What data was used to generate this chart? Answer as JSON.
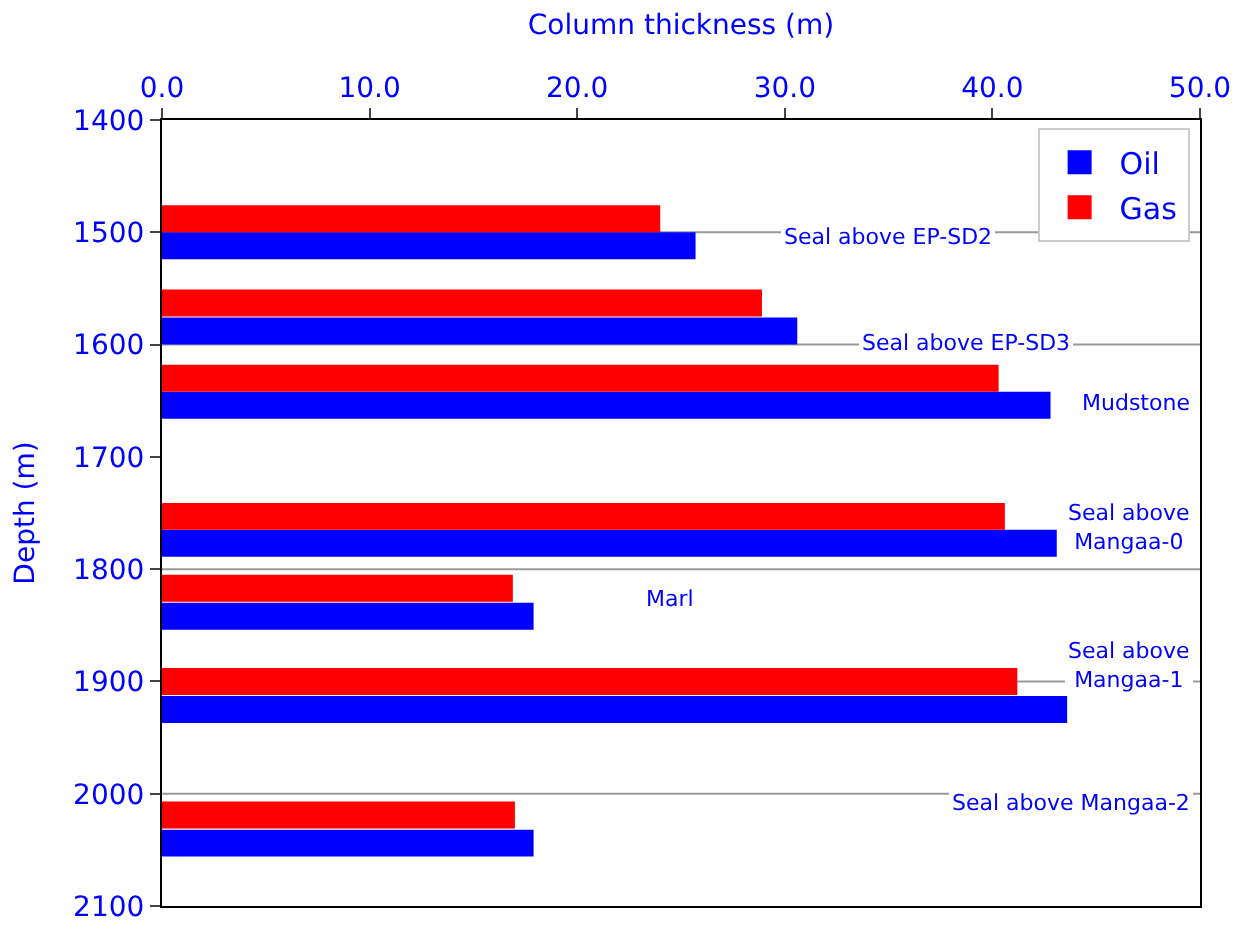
{
  "chart_data": {
    "type": "bar",
    "orientation": "horizontal",
    "xlabel": "Column thickness (m)",
    "ylabel": "Depth (m)",
    "xlim": [
      0,
      50
    ],
    "xticks": [
      {
        "value": 0,
        "label": "0.0"
      },
      {
        "value": 10,
        "label": "10.0"
      },
      {
        "value": 20,
        "label": "20.0"
      },
      {
        "value": 30,
        "label": "30.0"
      },
      {
        "value": 40,
        "label": "40.0"
      },
      {
        "value": 50,
        "label": "50.0"
      }
    ],
    "ylim": [
      2100,
      1400
    ],
    "yticks": [
      1400,
      1500,
      1600,
      1700,
      1800,
      1900,
      2000,
      2100
    ],
    "series": [
      {
        "name": "Oil",
        "color": "#0000ff",
        "x": [
          1512,
          1588,
          1654,
          1777,
          1842,
          1925,
          2044
        ],
        "values": [
          25.7,
          30.6,
          42.8,
          43.1,
          17.9,
          43.6,
          17.9
        ]
      },
      {
        "name": "Gas",
        "color": "#ff0000",
        "x": [
          1488,
          1563,
          1630,
          1753,
          1817,
          1900,
          2019
        ],
        "values": [
          24.0,
          28.9,
          40.3,
          40.6,
          16.9,
          41.2,
          17.0
        ]
      }
    ],
    "ref_lines": [
      {
        "axis": "y",
        "value": 1500
      },
      {
        "axis": "y",
        "value": 1600
      },
      {
        "axis": "y",
        "value": 1800
      },
      {
        "axis": "y",
        "value": 1900
      },
      {
        "axis": "y",
        "value": 2000
      }
    ],
    "annotations": [
      "Seal above EP-SD2",
      "Seal above EP-SD3",
      "Mudstone",
      "Seal above\nMangaa-0",
      "Marl",
      "Seal above\nMangaa-1",
      "Seal above Mangaa-2"
    ],
    "legend": "top right",
    "grid": false
  }
}
